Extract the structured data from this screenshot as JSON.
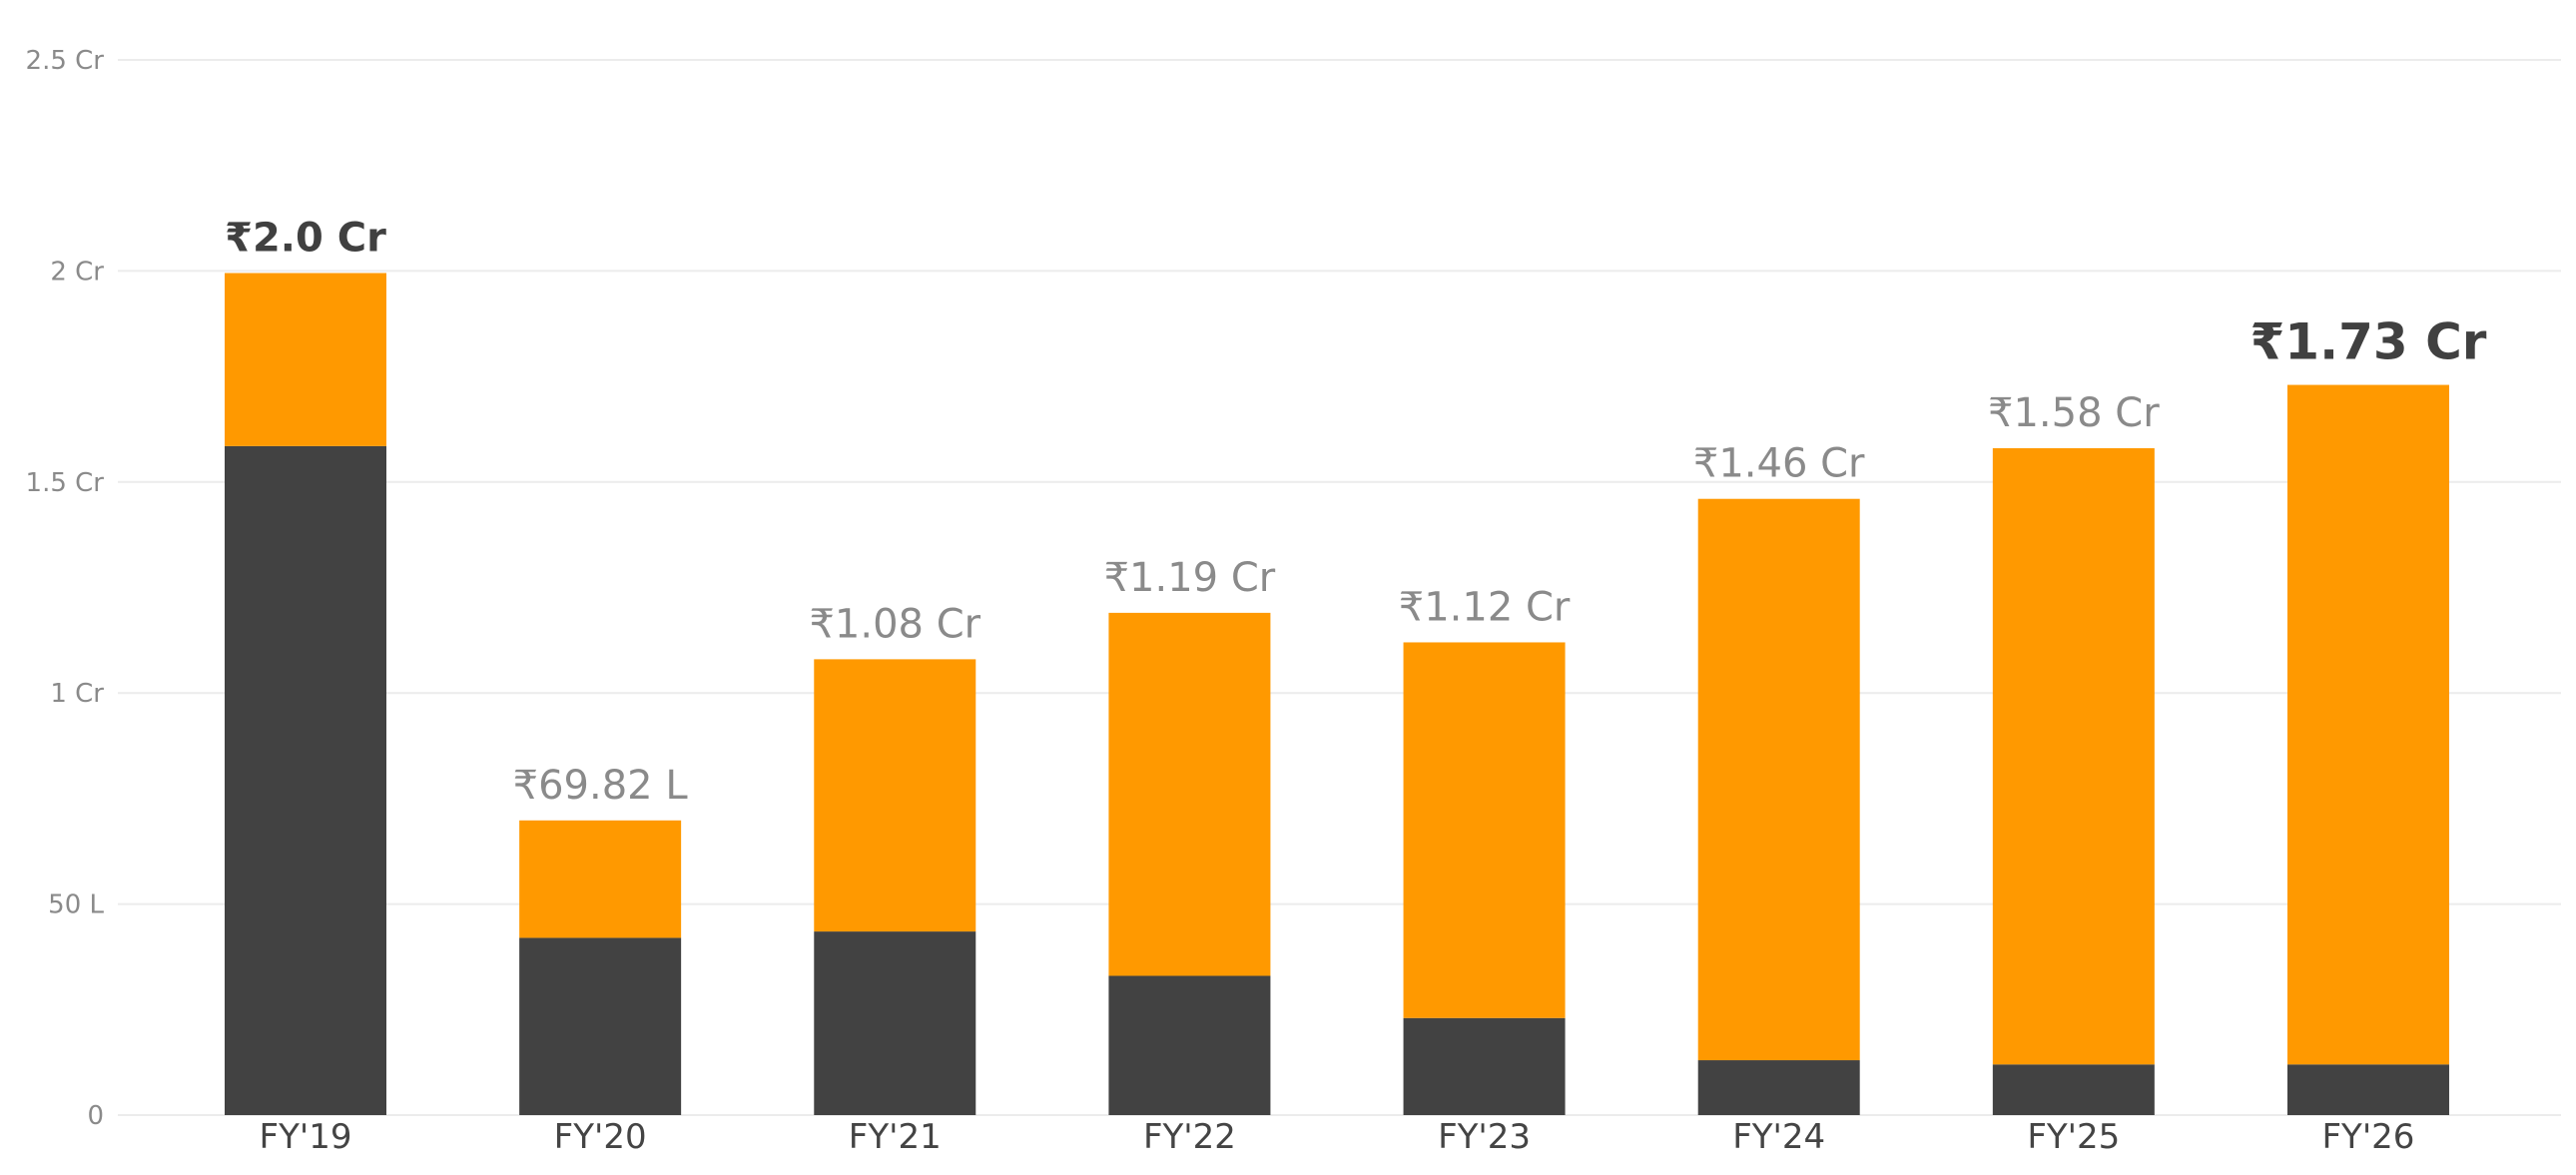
{
  "chart_data": {
    "type": "bar",
    "stacked": true,
    "categories": [
      "FY'19",
      "FY'20",
      "FY'21",
      "FY'22",
      "FY'23",
      "FY'24",
      "FY'25",
      "FY'26"
    ],
    "series": [
      {
        "values": [
          1.585,
          0.42,
          0.435,
          0.33,
          0.23,
          0.13,
          0.12,
          0.12
        ]
      },
      {
        "values": [
          0.41,
          0.2782,
          0.645,
          0.86,
          0.89,
          1.33,
          1.46,
          1.61
        ]
      }
    ],
    "data_labels": [
      "₹2.0 Cr",
      "₹69.82 L",
      "₹1.08 Cr",
      "₹1.19 Cr",
      "₹1.12 Cr",
      "₹1.46 Cr",
      "₹1.58 Cr",
      "₹1.73 Cr"
    ],
    "yticks": [
      {
        "value": 0,
        "label": "0"
      },
      {
        "value": 0.5,
        "label": "50 L"
      },
      {
        "value": 1.0,
        "label": "1 Cr"
      },
      {
        "value": 1.5,
        "label": "1.5 Cr"
      },
      {
        "value": 2.0,
        "label": "2 Cr"
      },
      {
        "value": 2.5,
        "label": "2.5 Cr"
      }
    ],
    "ylim": [
      0,
      2.5
    ],
    "grid": true,
    "colors": {
      "base": "#424242",
      "top": "#FF9900",
      "axis_text": "#8a8a8a",
      "category_text": "#444444"
    }
  }
}
